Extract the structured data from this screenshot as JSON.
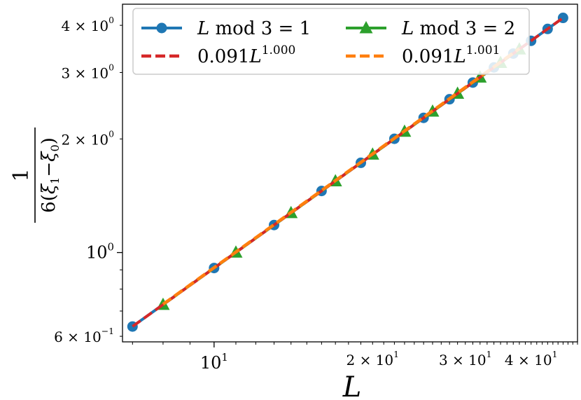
{
  "chart_data": {
    "type": "line",
    "scale": {
      "x": "log",
      "y": "log"
    },
    "xlim": [
      6.7,
      49
    ],
    "ylim": [
      0.58,
      4.55
    ],
    "xlabel": "L",
    "ylabel": "1 / 6(ξ1 − ξ0)",
    "legend_placement": "top",
    "x_ticks": [
      {
        "value": 10,
        "base": "10",
        "exp": "1",
        "major": true
      },
      {
        "value": 20,
        "base": "2 × 10",
        "exp": "1",
        "major": false
      },
      {
        "value": 30,
        "base": "3 × 10",
        "exp": "1",
        "major": false
      },
      {
        "value": 40,
        "base": "4 × 10",
        "exp": "1",
        "major": false
      }
    ],
    "y_ticks": [
      {
        "value": 0.6,
        "base": "6 × 10",
        "exp": "−1",
        "major": false
      },
      {
        "value": 1,
        "base": "10",
        "exp": "0",
        "major": true
      },
      {
        "value": 2,
        "base": "2 × 10",
        "exp": "0",
        "major": false
      },
      {
        "value": 3,
        "base": "3 × 10",
        "exp": "0",
        "major": false
      },
      {
        "value": 4,
        "base": "4 × 10",
        "exp": "0",
        "major": false
      }
    ],
    "series": [
      {
        "name": "L mod 3 = 1",
        "color": "#1f77b4",
        "marker": "circle",
        "style": "solid",
        "x": [
          7,
          10,
          13,
          16,
          19,
          22,
          25,
          28,
          31,
          34,
          37,
          40,
          43,
          46
        ],
        "y": [
          0.637,
          0.91,
          1.183,
          1.456,
          1.729,
          2.002,
          2.275,
          2.548,
          2.821,
          3.094,
          3.367,
          3.64,
          3.913,
          4.186
        ]
      },
      {
        "name": "L mod 3 = 2",
        "color": "#2ca02c",
        "marker": "triangle",
        "style": "solid",
        "x": [
          8,
          11,
          14,
          17,
          20,
          23,
          26,
          29,
          32,
          35,
          38
        ],
        "y": [
          0.728,
          1.001,
          1.274,
          1.547,
          1.82,
          2.093,
          2.366,
          2.639,
          2.912,
          3.185,
          3.458
        ]
      },
      {
        "name": "0.091L",
        "exponent": "1.000",
        "color": "#d62728",
        "marker": "none",
        "style": "dashed",
        "coef": 0.091,
        "power": 1.0,
        "x_range": [
          7,
          46
        ]
      },
      {
        "name": "0.091L",
        "exponent": "1.001",
        "color": "#ff7f0e",
        "marker": "none",
        "style": "dashed",
        "coef": 0.091,
        "power": 1.001,
        "x_range": [
          8,
          38
        ]
      }
    ],
    "legend": [
      {
        "label_italic": "L",
        "label_rest": " mod 3 = 1",
        "exp": ""
      },
      {
        "label_italic": "L",
        "label_rest": " mod 3 = 2",
        "exp": ""
      },
      {
        "label_prefix": "0.091",
        "label_italic": "L",
        "exp": "1.000"
      },
      {
        "label_prefix": "0.091",
        "label_italic": "L",
        "exp": "1.001"
      }
    ]
  }
}
